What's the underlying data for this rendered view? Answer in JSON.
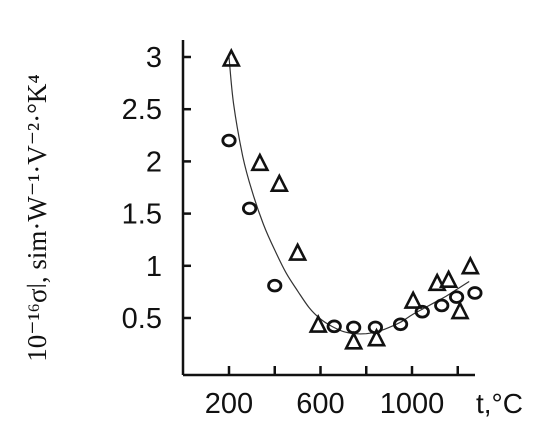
{
  "chart_data": {
    "type": "scatter",
    "title": "",
    "ylabel": "10⁻¹⁶σǀ, sim·W⁻¹·V⁻²·°K⁴",
    "xlabel": "t,°C",
    "xlim": [
      150,
      1250
    ],
    "ylim": [
      0.2,
      3.15
    ],
    "x_ticks": [
      200,
      600,
      1000
    ],
    "x_tick_labels": [
      "200",
      "600",
      "1000"
    ],
    "x_minor_ticks": [
      400,
      800,
      1200
    ],
    "y_ticks": [
      0.5,
      1,
      1.5,
      2,
      2.5,
      3
    ],
    "y_tick_labels": [
      "0.5",
      "1",
      "1.5",
      "2",
      "2.5",
      "3"
    ],
    "grid": false,
    "legend": "none",
    "series": [
      {
        "marker": "triangle",
        "points": [
          {
            "x": 210,
            "y": 2.98
          },
          {
            "x": 335,
            "y": 1.98
          },
          {
            "x": 420,
            "y": 1.78
          },
          {
            "x": 500,
            "y": 1.12
          },
          {
            "x": 590,
            "y": 0.43
          },
          {
            "x": 745,
            "y": 0.27
          },
          {
            "x": 845,
            "y": 0.3
          },
          {
            "x": 1005,
            "y": 0.66
          },
          {
            "x": 1110,
            "y": 0.83
          },
          {
            "x": 1160,
            "y": 0.86
          },
          {
            "x": 1210,
            "y": 0.56
          },
          {
            "x": 1255,
            "y": 0.99
          }
        ]
      },
      {
        "marker": "circle",
        "points": [
          {
            "x": 200,
            "y": 2.2
          },
          {
            "x": 290,
            "y": 1.55
          },
          {
            "x": 400,
            "y": 0.81
          },
          {
            "x": 660,
            "y": 0.42
          },
          {
            "x": 745,
            "y": 0.41
          },
          {
            "x": 840,
            "y": 0.41
          },
          {
            "x": 950,
            "y": 0.44
          },
          {
            "x": 1045,
            "y": 0.56
          },
          {
            "x": 1130,
            "y": 0.62
          },
          {
            "x": 1195,
            "y": 0.7
          },
          {
            "x": 1275,
            "y": 0.74
          }
        ]
      }
    ],
    "fit_curve": {
      "style": "line",
      "x": [
        200,
        220,
        260,
        300,
        350,
        400,
        450,
        500,
        550,
        600,
        650,
        700,
        750,
        800,
        850,
        900,
        950,
        1000,
        1050,
        1100,
        1150,
        1200,
        1250
      ],
      "y": [
        3.0,
        2.55,
        2.05,
        1.72,
        1.4,
        1.15,
        0.93,
        0.76,
        0.6,
        0.49,
        0.42,
        0.37,
        0.35,
        0.35,
        0.37,
        0.41,
        0.46,
        0.53,
        0.59,
        0.65,
        0.71,
        0.78,
        0.85
      ]
    },
    "colors": {
      "axis": "#111111",
      "marker": "#111111",
      "curve": "#333333",
      "background": "#ffffff"
    }
  }
}
